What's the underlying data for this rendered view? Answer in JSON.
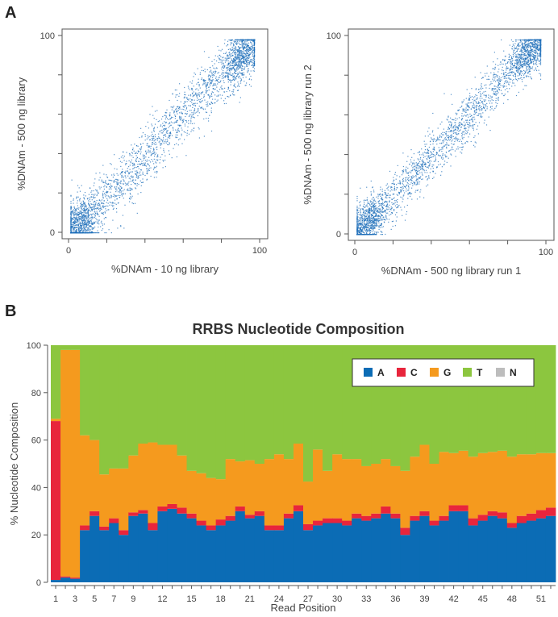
{
  "panels": {
    "a_label": "A",
    "b_label": "B"
  },
  "colors": {
    "scatter_point": "#1f6fba",
    "A": "#0b6cb5",
    "C": "#e8253c",
    "G": "#f59a1e",
    "T": "#8cc63f",
    "N": "#bdbdbd"
  },
  "chart_data": [
    {
      "type": "scatter",
      "panel": "A",
      "xlabel": "%DNAm - 10 ng library",
      "ylabel": "%DNAm - 500 ng library",
      "xlim": [
        0,
        100
      ],
      "ylim": [
        0,
        100
      ],
      "xticks": [
        "0",
        "",
        "",
        "",
        "",
        "100"
      ],
      "yticks": [
        "0",
        "",
        "",
        "",
        "",
        "100"
      ],
      "grid": false,
      "density_profile": {
        "x": [
          2,
          5,
          10,
          20,
          30,
          40,
          50,
          60,
          70,
          80,
          90,
          95,
          98
        ],
        "y": [
          1,
          3,
          8,
          18,
          28,
          38,
          50,
          60,
          70,
          80,
          90,
          95,
          97
        ]
      }
    },
    {
      "type": "scatter",
      "panel": "A",
      "xlabel": "%DNAm - 500 ng library run 1",
      "ylabel": "%DNAm - 500 ng library run 2",
      "xlim": [
        0,
        100
      ],
      "ylim": [
        0,
        100
      ],
      "xticks": [
        "0",
        "",
        "",
        "",
        "",
        "100"
      ],
      "yticks": [
        "0",
        "",
        "",
        "",
        "",
        "100"
      ],
      "grid": false,
      "density_profile": {
        "x": [
          2,
          5,
          10,
          20,
          30,
          40,
          50,
          60,
          70,
          80,
          90,
          95,
          98
        ],
        "y": [
          1,
          4,
          9,
          19,
          29,
          40,
          50,
          60,
          71,
          81,
          91,
          95,
          97
        ]
      }
    },
    {
      "type": "area",
      "stacked": true,
      "panel": "B",
      "title": "RRBS Nucleotide Composition",
      "xlabel": "Read Position",
      "ylabel": "% Nucleotide Composition",
      "ylim": [
        0,
        100
      ],
      "yticks": [
        "0",
        "20",
        "40",
        "60",
        "80",
        "100"
      ],
      "xticks": [
        "1",
        "3",
        "5",
        "7",
        "9",
        "12",
        "15",
        "18",
        "21",
        "24",
        "27",
        "30",
        "33",
        "36",
        "39",
        "42",
        "45",
        "48",
        "51"
      ],
      "legend": {
        "position": "top-right",
        "entries": [
          "A",
          "C",
          "G",
          "T",
          "N"
        ]
      },
      "x": [
        1,
        2,
        3,
        4,
        5,
        6,
        7,
        8,
        9,
        10,
        11,
        12,
        13,
        14,
        15,
        16,
        17,
        18,
        19,
        20,
        21,
        22,
        23,
        24,
        25,
        26,
        27,
        28,
        29,
        30,
        31,
        32,
        33,
        34,
        35,
        36,
        37,
        38,
        39,
        40,
        41,
        42,
        43,
        44,
        45,
        46,
        47,
        48,
        49,
        50,
        51,
        52
      ],
      "series": [
        {
          "name": "A",
          "values": [
            1,
            2,
            1.5,
            22,
            28,
            22,
            25,
            20,
            28,
            29,
            22,
            30,
            31,
            29,
            27,
            24,
            22,
            24,
            26,
            30,
            27,
            28,
            22,
            22,
            27,
            30,
            22,
            24,
            25,
            25,
            24,
            27,
            26,
            27,
            29,
            27,
            20,
            26,
            28,
            24,
            26,
            30,
            30,
            24,
            26,
            28,
            27,
            23,
            25,
            26,
            27,
            28
          ]
        },
        {
          "name": "C",
          "values": [
            67,
            0.5,
            0.5,
            2,
            2,
            1.5,
            2,
            2,
            1.5,
            1.5,
            3,
            2,
            2,
            2.5,
            2,
            2,
            2,
            2.5,
            2,
            2,
            1.5,
            2,
            2,
            2,
            2,
            2.5,
            2.5,
            2,
            2,
            2,
            2,
            2,
            2,
            2,
            3,
            2,
            3,
            2,
            2,
            2,
            2,
            2.5,
            2.5,
            3,
            2.5,
            2,
            2.5,
            2,
            3,
            3,
            3.5,
            3.5
          ]
        },
        {
          "name": "G",
          "values": [
            1,
            95.5,
            96,
            38,
            30,
            22,
            21,
            26,
            24,
            28,
            34,
            26,
            25,
            22,
            18,
            20,
            20,
            17,
            24,
            19,
            23,
            20,
            28,
            30,
            23,
            26,
            18,
            30,
            20,
            27,
            26,
            23,
            21,
            21,
            20,
            20,
            24,
            25,
            28,
            24,
            27,
            22,
            23,
            26,
            26,
            25,
            26,
            28,
            26,
            25,
            24,
            23
          ]
        },
        {
          "name": "T",
          "values": [
            31,
            2,
            2,
            38,
            40,
            54.5,
            52,
            52,
            46.5,
            41.5,
            41,
            42,
            42,
            46.5,
            53,
            54,
            56,
            56.5,
            48,
            49,
            48.5,
            50,
            48,
            46,
            48,
            41.5,
            57.5,
            44,
            53,
            46,
            48,
            48,
            51,
            50,
            48,
            51,
            53,
            47,
            42,
            50,
            45,
            45.5,
            44.5,
            47,
            45.5,
            45,
            44.5,
            47,
            46,
            46,
            45.5,
            45.5
          ]
        },
        {
          "name": "N",
          "values": [
            0,
            0,
            0,
            0,
            0,
            0,
            0,
            0,
            0,
            0,
            0,
            0,
            0,
            0,
            0,
            0,
            0,
            0,
            0,
            0,
            0,
            0,
            0,
            0,
            0,
            0,
            0,
            0,
            0,
            0,
            0,
            0,
            0,
            0,
            0,
            0,
            0,
            0,
            0,
            0,
            0,
            0,
            0,
            0,
            0,
            0,
            0,
            0,
            0,
            0,
            0,
            0
          ]
        }
      ]
    }
  ]
}
